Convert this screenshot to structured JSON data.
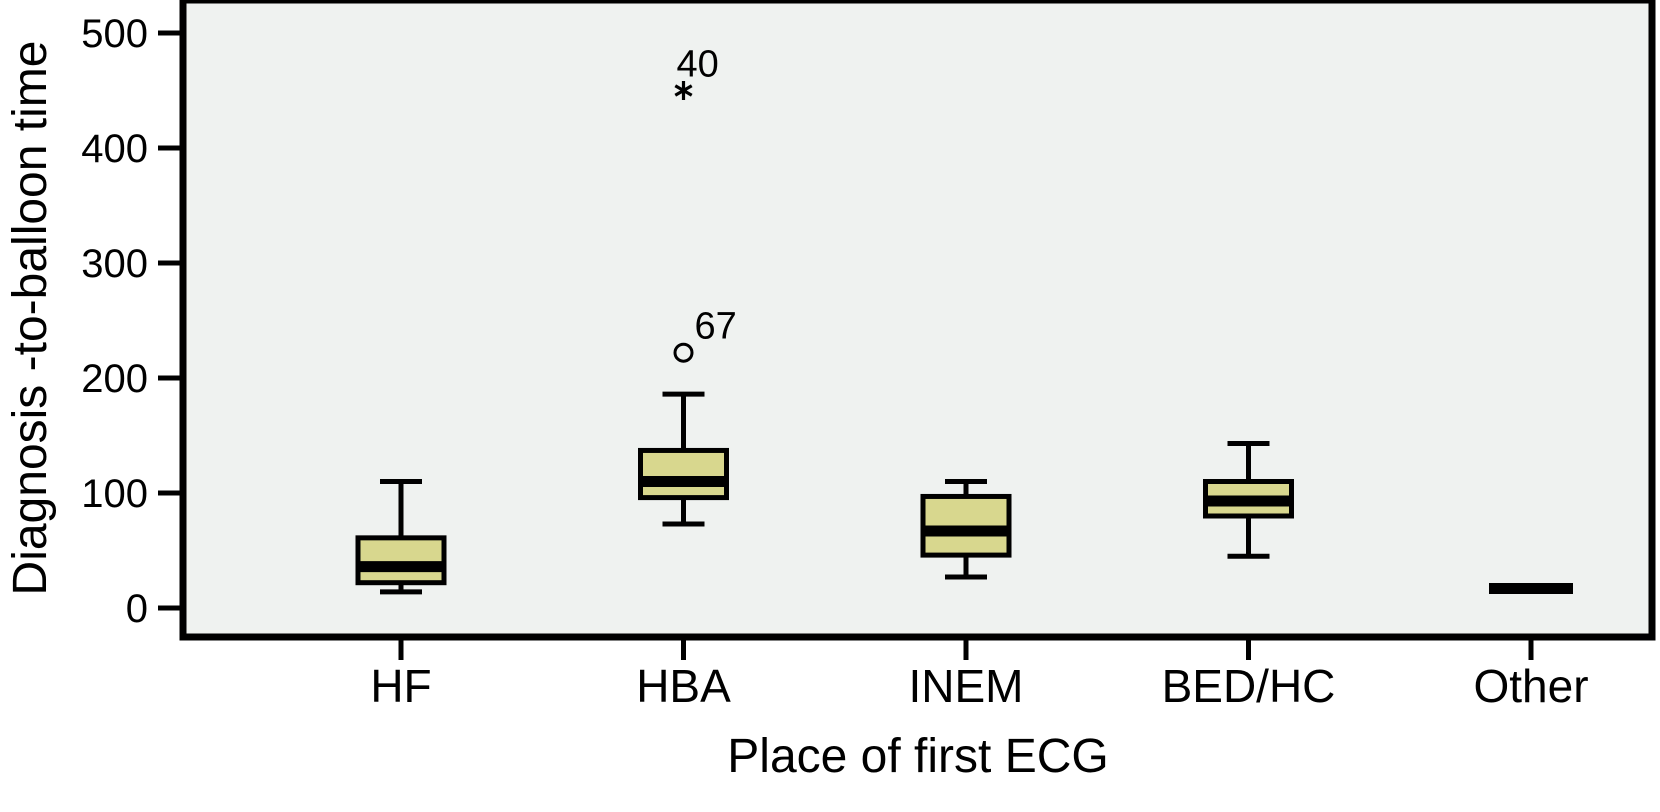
{
  "chart_data": {
    "type": "boxplot",
    "title": "",
    "xlabel": "Place of first ECG",
    "ylabel": "Diagnosis -to-balloon time",
    "categories": [
      "HF",
      "HBA",
      "INEM",
      "BED/HC",
      "Other"
    ],
    "yticks": [
      0,
      100,
      200,
      300,
      400,
      500
    ],
    "ylim": [
      -25,
      530
    ],
    "grid": false,
    "legend": false,
    "colors": {
      "box_fill": "#d8d78e",
      "line": "#000000",
      "plot_bg": "#eff2f0",
      "page_bg": "#ffffff"
    },
    "series": [
      {
        "category": "HF",
        "whisker_low": 14,
        "q1": 22,
        "median": 36,
        "q3": 61,
        "whisker_high": 110,
        "outliers": []
      },
      {
        "category": "HBA",
        "whisker_low": 73,
        "q1": 96,
        "median": 110,
        "q3": 137,
        "whisker_high": 186,
        "outliers": [
          {
            "value": 222,
            "marker": "circle",
            "label": "67"
          },
          {
            "value": 450,
            "marker": "asterisk",
            "label": "40"
          }
        ]
      },
      {
        "category": "INEM",
        "whisker_low": 27,
        "q1": 46,
        "median": 67,
        "q3": 97,
        "whisker_high": 110,
        "outliers": []
      },
      {
        "category": "BED/HC",
        "whisker_low": 45,
        "q1": 80,
        "median": 93,
        "q3": 110,
        "whisker_high": 143,
        "outliers": []
      },
      {
        "category": "Other",
        "whisker_low": null,
        "q1": null,
        "median": 17,
        "q3": null,
        "whisker_high": null,
        "outliers": []
      }
    ]
  }
}
